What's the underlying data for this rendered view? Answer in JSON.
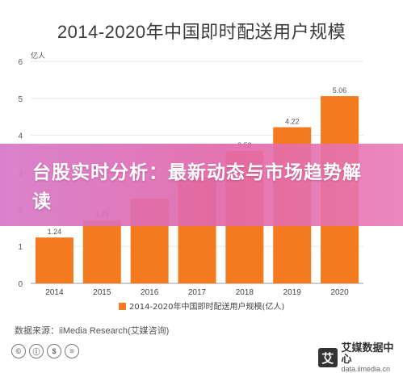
{
  "chart_data": {
    "type": "bar",
    "title": "2014-2020年中国即时配送用户规模",
    "ylabel": "亿人",
    "categories": [
      "2014",
      "2015",
      "2016",
      "2017",
      "2018",
      "2019",
      "2020"
    ],
    "values": [
      1.24,
      1.71,
      2.29,
      2.87,
      3.58,
      4.22,
      5.06
    ],
    "value_labels": [
      "1.24",
      "1.71",
      "",
      "",
      "3.58",
      "4.22",
      "5.06"
    ],
    "ylim": [
      0,
      6
    ],
    "yticks": [
      "0",
      "1",
      "2",
      "3",
      "4",
      "5",
      "6"
    ],
    "legend": "2014-2020年中国即时配送用户规模(亿人)",
    "legend_position": "bottom",
    "bar_color": "#f47a20",
    "grid": true
  },
  "overlay": {
    "headline": "台股实时分析：最新动态与市场趋势解读"
  },
  "footer": {
    "source": "数据来源：iiMedia Research(艾媒咨询)",
    "cc_icons": [
      "©",
      "ⓘ",
      "$",
      "="
    ],
    "brand_logo_char": "艾",
    "brand_name": "艾媒数据中心",
    "brand_url": "data.iimedia.cn"
  }
}
